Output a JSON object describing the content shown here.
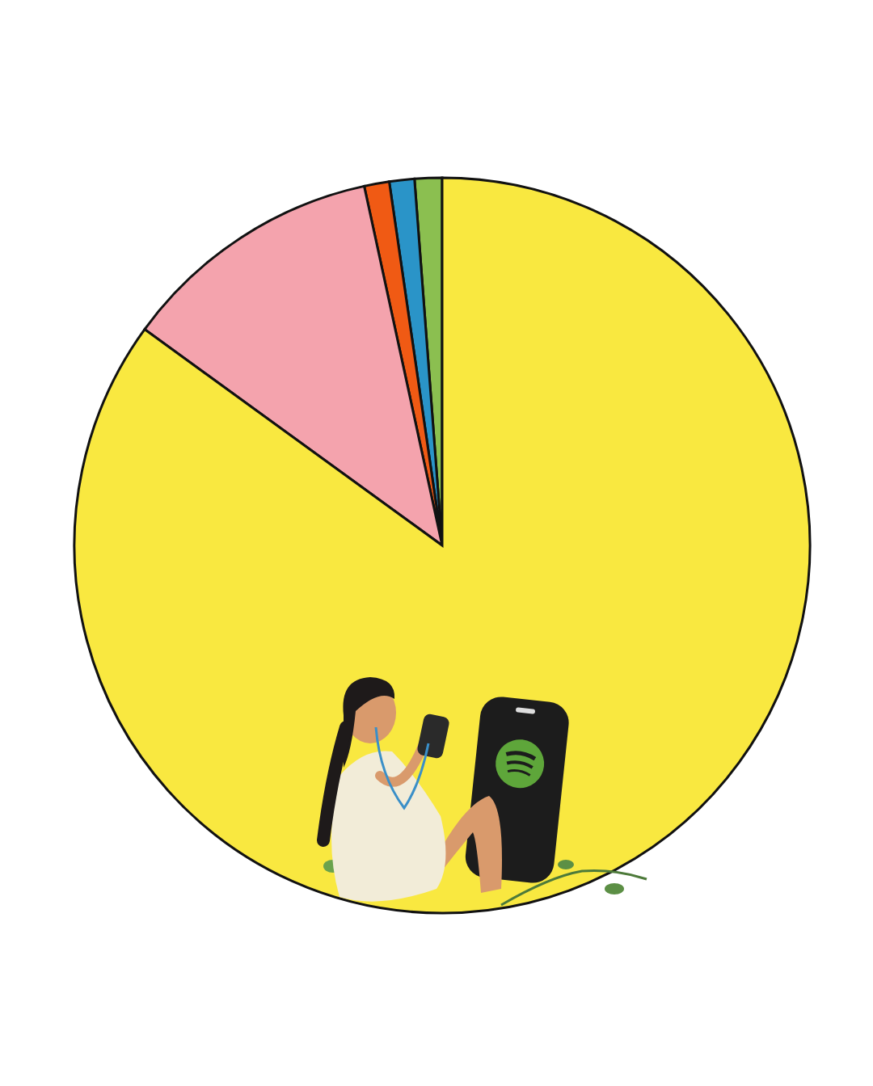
{
  "chart_data": {
    "type": "pie",
    "values": [
      1.2,
      1.1,
      1.1,
      11.6,
      85
    ],
    "colors": [
      "#8bbf50",
      "#2a94c8",
      "#f05a14",
      "#f4a3ad",
      "#f9e840"
    ]
  }
}
